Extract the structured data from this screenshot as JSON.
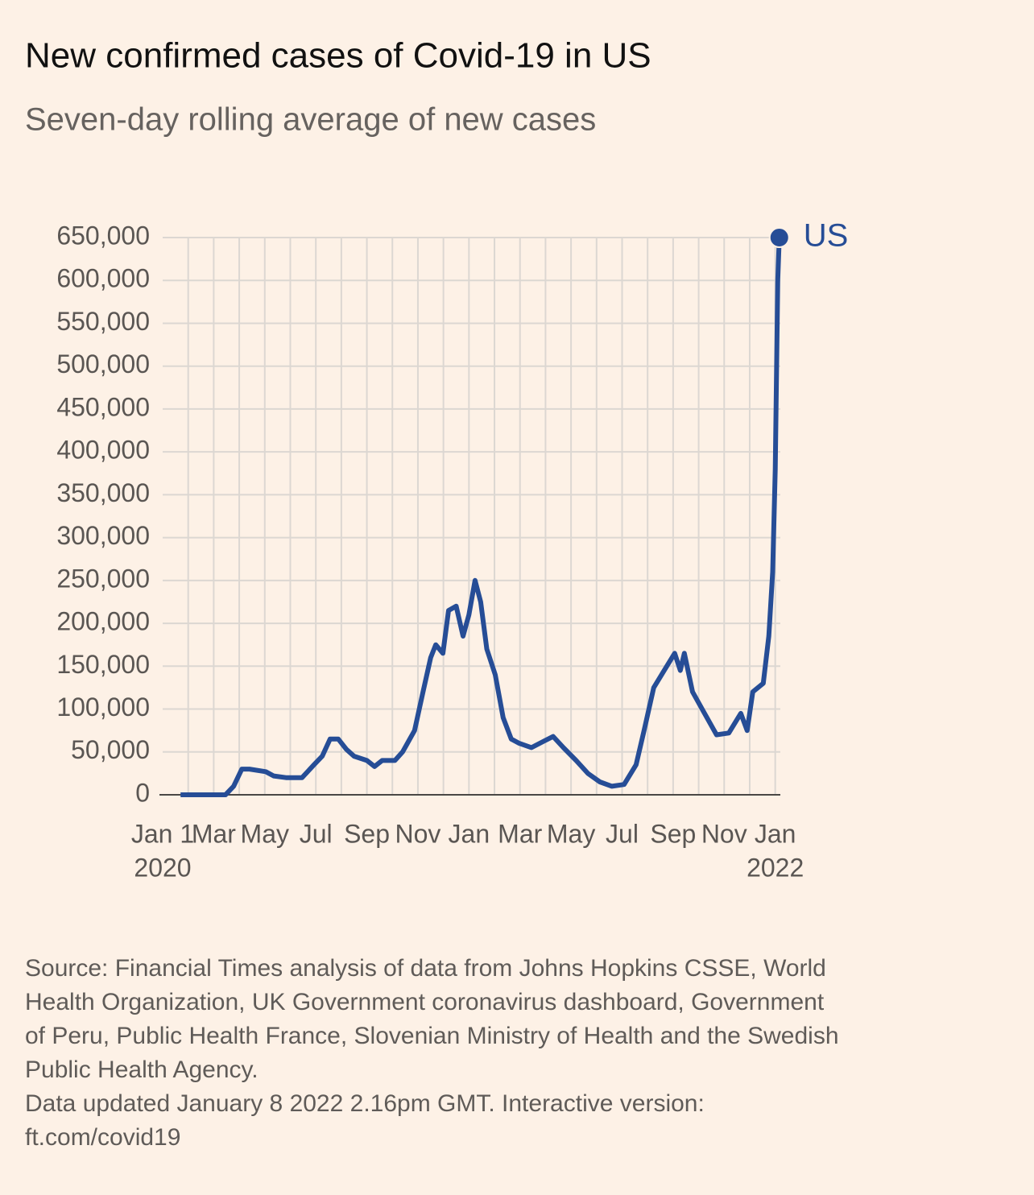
{
  "chart_data": {
    "type": "line",
    "title": "New confirmed cases of Covid-19 in US",
    "subtitle": "Seven-day rolling average of new cases",
    "x": [
      0.7,
      2.46,
      2.78,
      3.1,
      3.4,
      4.04,
      4.35,
      4.83,
      5.46,
      5.93,
      6.25,
      6.56,
      6.88,
      7.2,
      7.5,
      8.0,
      8.3,
      8.6,
      9.1,
      9.4,
      9.87,
      10.2,
      10.5,
      10.7,
      10.98,
      11.2,
      11.5,
      11.77,
      12.0,
      12.24,
      12.46,
      12.7,
      13.03,
      13.34,
      13.66,
      13.97,
      14.45,
      14.9,
      15.3,
      15.7,
      16.2,
      16.66,
      17.13,
      17.6,
      18.08,
      18.55,
      18.86,
      19.24,
      19.65,
      20.06,
      20.28,
      20.44,
      20.76,
      21.23,
      21.7,
      22.18,
      22.65,
      22.9,
      23.12,
      23.53,
      23.75,
      23.9,
      24.0,
      24.1,
      24.16
    ],
    "series": [
      {
        "name": "US",
        "color": "#264d96",
        "values": [
          0,
          0,
          10000,
          30000,
          30000,
          27000,
          22000,
          20000,
          20000,
          35000,
          45000,
          65000,
          65000,
          53000,
          45000,
          40000,
          33000,
          40000,
          40000,
          50000,
          75000,
          120000,
          160000,
          175000,
          165000,
          215000,
          220000,
          185000,
          210000,
          250000,
          225000,
          170000,
          140000,
          90000,
          65000,
          60000,
          55000,
          62000,
          68000,
          55000,
          40000,
          25000,
          15000,
          10000,
          12000,
          35000,
          75000,
          125000,
          145000,
          165000,
          145000,
          165000,
          120000,
          95000,
          70000,
          72000,
          95000,
          75000,
          120000,
          130000,
          185000,
          260000,
          380000,
          600000,
          650000
        ]
      }
    ],
    "xlim": [
      0,
      24.2
    ],
    "xticks": [
      {
        "value": 0,
        "label": "Jan 1"
      },
      {
        "value": 2,
        "label": "Mar"
      },
      {
        "value": 4,
        "label": "May"
      },
      {
        "value": 6,
        "label": "Jul"
      },
      {
        "value": 8,
        "label": "Sep"
      },
      {
        "value": 10,
        "label": "Nov"
      },
      {
        "value": 12,
        "label": "Jan"
      },
      {
        "value": 14,
        "label": "Mar"
      },
      {
        "value": 16,
        "label": "May"
      },
      {
        "value": 18,
        "label": "Jul"
      },
      {
        "value": 20,
        "label": "Sep"
      },
      {
        "value": 22,
        "label": "Nov"
      },
      {
        "value": 24,
        "label": "Jan"
      }
    ],
    "year_labels": [
      {
        "value": 0,
        "label": "2020"
      },
      {
        "value": 24,
        "label": "2022"
      }
    ],
    "ylim": [
      0,
      650000
    ],
    "yticks": [
      0,
      {
        "value": 50000,
        "label": "50,000"
      },
      {
        "value": 100000,
        "label": "100,000"
      },
      {
        "value": 150000,
        "label": "150,000"
      },
      {
        "value": 200000,
        "label": "200,000"
      },
      {
        "value": 250000,
        "label": "250,000"
      },
      {
        "value": 300000,
        "label": "300,000"
      },
      {
        "value": 350000,
        "label": "350,000"
      },
      {
        "value": 400000,
        "label": "400,000"
      },
      {
        "value": 450000,
        "label": "450,000"
      },
      {
        "value": 500000,
        "label": "500,000"
      },
      {
        "value": 550000,
        "label": "550,000"
      },
      {
        "value": 600000,
        "label": "600,000"
      },
      {
        "value": 650000,
        "label": "650,000"
      }
    ],
    "grid": true,
    "source": [
      "Source: Financial Times analysis of data from Johns Hopkins CSSE, World",
      "Health Organization, UK Government coronavirus dashboard, Government",
      "of Peru, Public Health France, Slovenian Ministry of Health and the Swedish",
      "Public Health Agency.",
      "Data updated January 8 2022 2.16pm GMT. Interactive version:",
      "ft.com/covid19"
    ]
  }
}
